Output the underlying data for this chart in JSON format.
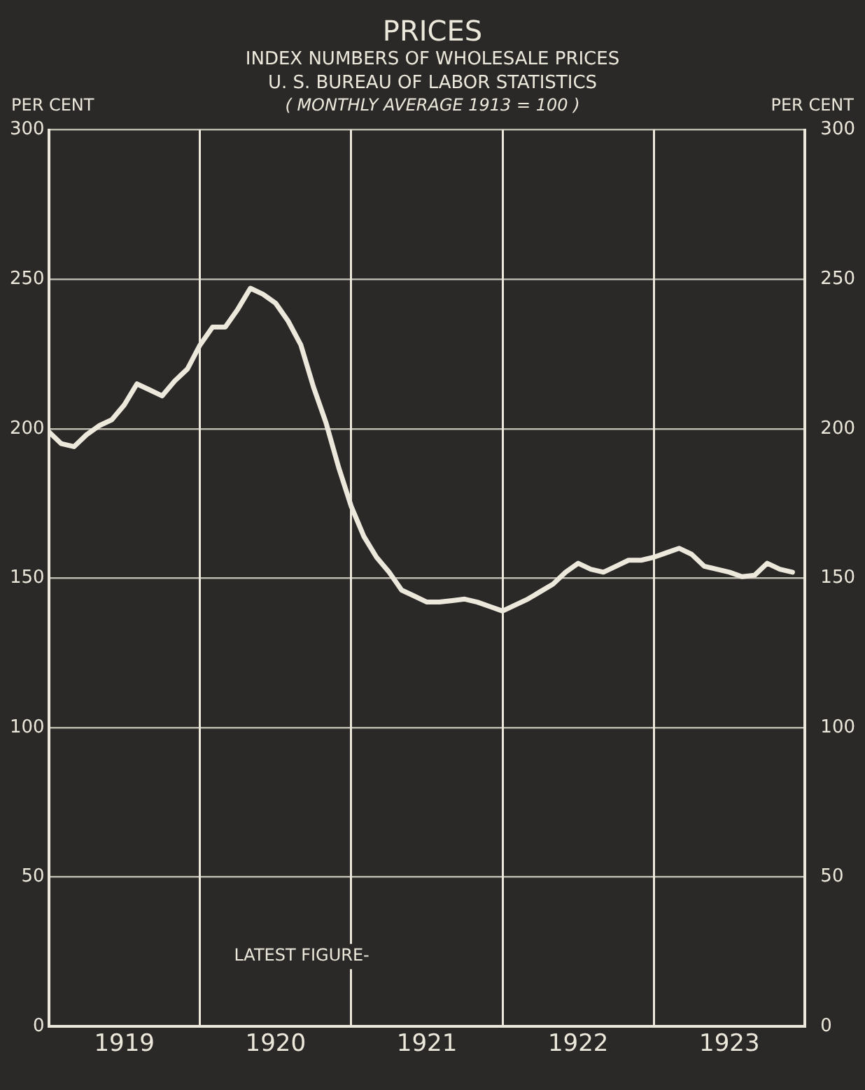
{
  "chart_data": {
    "type": "line",
    "title": "PRICES",
    "subtitle": "INDEX NUMBERS OF WHOLESALE PRICES\nU. S. BUREAU OF LABOR STATISTICS",
    "annotations": [
      "( MONTHLY AVERAGE 1913 = 100 )",
      "LATEST FIGURE-"
    ],
    "ylabel": "PER CENT",
    "y2label": "PER CENT",
    "x": [
      1919,
      1919.083,
      1919.167,
      1919.25,
      1919.333,
      1919.417,
      1919.5,
      1919.583,
      1919.667,
      1919.75,
      1919.833,
      1919.917,
      1920,
      1920.083,
      1920.167,
      1920.25,
      1920.333,
      1920.417,
      1920.5,
      1920.583,
      1920.667,
      1920.75,
      1920.833,
      1920.917,
      1921,
      1921.083,
      1921.167,
      1921.25,
      1921.333,
      1921.417,
      1921.5,
      1921.583,
      1921.667,
      1921.75,
      1921.833,
      1921.917,
      1922,
      1922.083,
      1922.167,
      1922.25,
      1922.333,
      1922.417,
      1922.5,
      1922.583,
      1922.667,
      1922.75,
      1922.833,
      1922.917,
      1923,
      1923.083,
      1923.167,
      1923.25,
      1923.333,
      1923.417,
      1923.5,
      1923.583,
      1923.667,
      1923.75,
      1923.833,
      1923.917
    ],
    "series": [
      {
        "color": "#ece8dc",
        "values": [
          199,
          195,
          194,
          198,
          201,
          203,
          208,
          215,
          213,
          211,
          216,
          220,
          228,
          234,
          234,
          240,
          247,
          245,
          242,
          236,
          228,
          214,
          202,
          187,
          174,
          164,
          157,
          152,
          146,
          144,
          142,
          142,
          142.5,
          143,
          142,
          140.5,
          139,
          141,
          143,
          145.5,
          148,
          152,
          155,
          153,
          152,
          154,
          156,
          156,
          157,
          158.5,
          160,
          158,
          154,
          153,
          152,
          150.5,
          151,
          155,
          153,
          152
        ]
      }
    ],
    "xlim": [
      1919,
      1924
    ],
    "xticks": [
      {
        "value": 1919.5,
        "label": "1919"
      },
      {
        "value": 1920,
        "label": null
      },
      {
        "value": 1920.5,
        "label": "1920"
      },
      {
        "value": 1921,
        "label": null
      },
      {
        "value": 1921.5,
        "label": "1921"
      },
      {
        "value": 1922,
        "label": null
      },
      {
        "value": 1922.5,
        "label": "1922"
      },
      {
        "value": 1923,
        "label": null
      },
      {
        "value": 1923.5,
        "label": "1923"
      }
    ],
    "ylim": [
      0,
      300
    ],
    "yticks": [
      0,
      50,
      100,
      150,
      200,
      250,
      300
    ],
    "y2lim": [
      0,
      300
    ],
    "y2ticks": [
      0,
      50,
      100,
      150,
      200,
      250,
      300
    ],
    "grid": true,
    "legend": false,
    "marker": "none",
    "line_style": "solid"
  }
}
